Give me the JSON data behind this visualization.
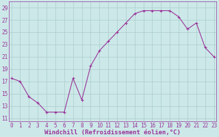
{
  "x": [
    0,
    1,
    2,
    3,
    4,
    5,
    6,
    7,
    8,
    9,
    10,
    11,
    12,
    13,
    14,
    15,
    16,
    17,
    18,
    19,
    20,
    21,
    22,
    23
  ],
  "y": [
    17.5,
    17.0,
    14.5,
    13.5,
    12.0,
    12.0,
    12.0,
    17.5,
    14.0,
    19.5,
    22.0,
    23.5,
    25.0,
    26.5,
    28.0,
    28.5,
    28.5,
    28.5,
    28.5,
    27.5,
    25.5,
    26.5,
    22.5,
    21.0
  ],
  "line_color": "#993399",
  "marker": "+",
  "marker_size": 3,
  "marker_linewidth": 0.8,
  "xlabel": "Windchill (Refroidissement éolien,°C)",
  "ytick_vals": [
    11,
    13,
    15,
    17,
    19,
    21,
    23,
    25,
    27,
    29
  ],
  "ytick_labels": [
    "11",
    "13",
    "15",
    "17",
    "19",
    "21",
    "23",
    "25",
    "27",
    "29"
  ],
  "xtick_vals": [
    0,
    1,
    2,
    3,
    4,
    5,
    6,
    7,
    8,
    9,
    10,
    11,
    12,
    13,
    14,
    15,
    16,
    17,
    18,
    19,
    20,
    21,
    22,
    23
  ],
  "xtick_labels": [
    "0",
    "1",
    "2",
    "3",
    "4",
    "5",
    "6",
    "7",
    "8",
    "9",
    "10",
    "11",
    "12",
    "13",
    "14",
    "15",
    "16",
    "17",
    "18",
    "19",
    "20",
    "21",
    "22",
    "23"
  ],
  "xlim": [
    -0.3,
    23.3
  ],
  "ylim": [
    10.5,
    30.0
  ],
  "bg_color": "#cce8e8",
  "grid_color": "#aacccc",
  "line_width": 0.8,
  "xlabel_fontsize": 6.5,
  "tick_fontsize": 5.5,
  "xlabel_fontweight": "bold"
}
